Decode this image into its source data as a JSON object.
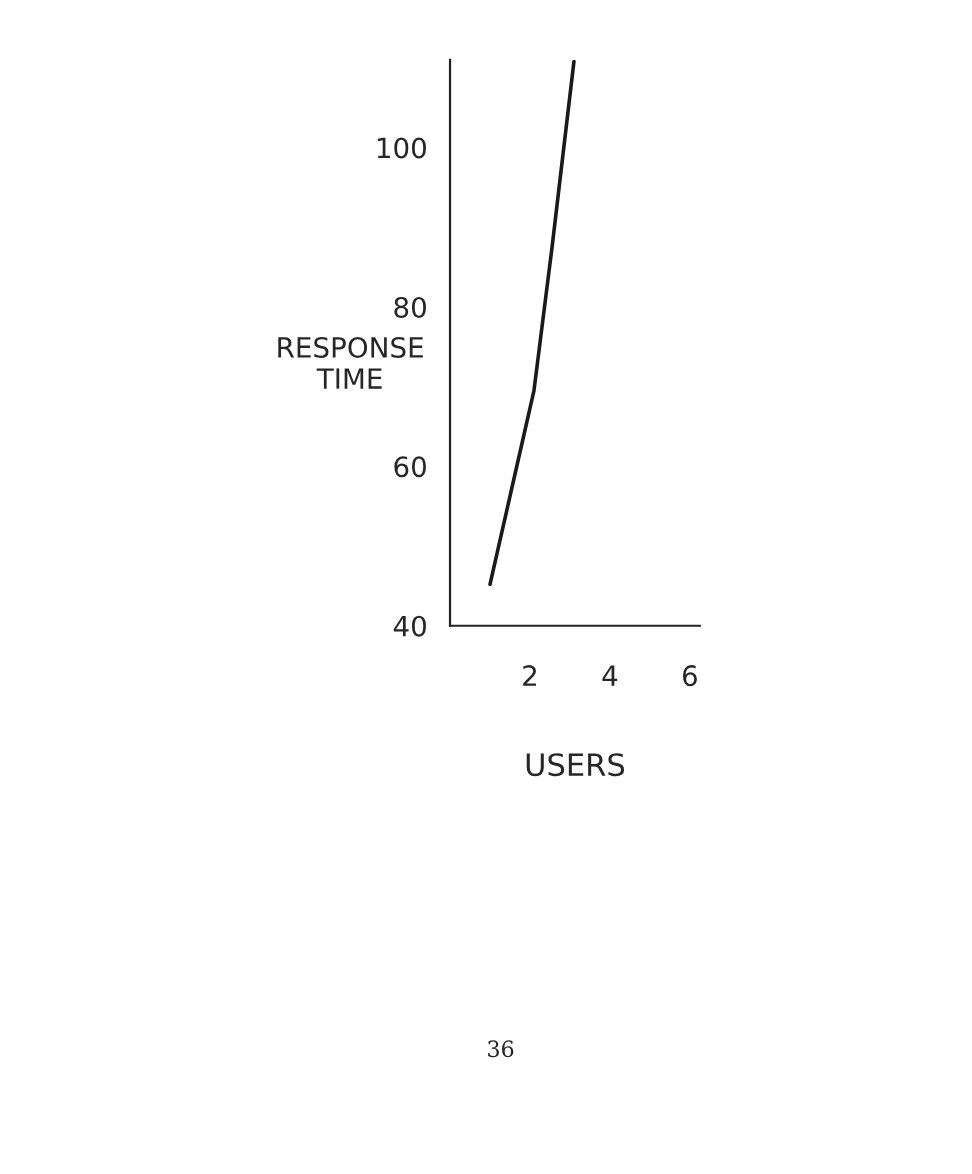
{
  "chart_data": {
    "type": "line",
    "xlabel": "USERS",
    "ylabel": "RESPONSE\nTIME",
    "x": [
      1.0,
      2.1,
      2.55,
      3.1
    ],
    "series": [
      {
        "color": "#1a1a1a",
        "values": [
          45.2,
          69.5,
          87.4,
          110.8
        ]
      }
    ],
    "xlim": [
      0,
      6.25
    ],
    "xticks": [
      2,
      4,
      6
    ],
    "ylim": [
      40,
      111
    ],
    "yticks": [
      40,
      60,
      80,
      100
    ],
    "grid": false,
    "legend": false,
    "marker": "none",
    "line_style": "solid",
    "annotations": [
      "36"
    ]
  }
}
